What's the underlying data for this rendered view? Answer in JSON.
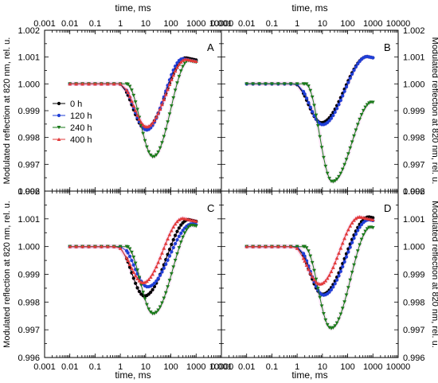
{
  "chart_data": {
    "type": "line",
    "layout": "2x2 panels sharing axes",
    "x_axis": {
      "label": "time, ms",
      "scale": "log",
      "range": [
        0.001,
        10000
      ],
      "tick_labels": [
        "0.001",
        "0.01",
        "0.1",
        "1",
        "10",
        "100",
        "1000",
        "10000"
      ]
    },
    "y_axis": {
      "label": "Modulated reflection at 820 nm, rel. u.",
      "range": [
        0.996,
        1.002
      ],
      "tick_labels": [
        "0.996",
        "0.997",
        "0.998",
        "0.999",
        "1.000",
        "1.001",
        "1.002"
      ]
    },
    "grid": false,
    "legend": {
      "placement": "panel A, left",
      "entries": [
        {
          "name": "0 h",
          "color": "#000000",
          "marker": "circle"
        },
        {
          "name": "120 h",
          "color": "#1f3fd6",
          "marker": "circle"
        },
        {
          "name": "240 h",
          "color": "#1a7a1a",
          "marker": "triangle-down"
        },
        {
          "name": "400 h",
          "color": "#e23a3a",
          "marker": "triangle-up"
        }
      ]
    },
    "panels": [
      {
        "letter": "A",
        "series": [
          {
            "name": "0 h",
            "min": 0.99832,
            "t_min": 10,
            "final": 1.00085,
            "t_peak": 400
          },
          {
            "name": "120 h",
            "min": 0.99828,
            "t_min": 11,
            "final": 1.00082,
            "t_peak": 300
          },
          {
            "name": "240 h",
            "min": 0.99728,
            "t_min": 20,
            "final": 1.00075,
            "t_peak": 500
          },
          {
            "name": "400 h",
            "min": 0.9984,
            "t_min": 11,
            "final": 1.0008,
            "t_peak": 400
          }
        ]
      },
      {
        "letter": "B",
        "series": [
          {
            "name": "0 h",
            "min": 0.99855,
            "t_min": 9,
            "final": 1.0009,
            "t_peak": 600
          },
          {
            "name": "120 h",
            "min": 0.99848,
            "t_min": 10,
            "final": 1.0009,
            "t_peak": 600
          },
          {
            "name": "240 h",
            "min": 0.99635,
            "t_min": 25,
            "final": 0.9992,
            "t_peak": 900
          }
        ]
      },
      {
        "letter": "C",
        "series": [
          {
            "name": "0 h",
            "min": 0.99822,
            "t_min": 9,
            "final": 1.00085,
            "t_peak": 500
          },
          {
            "name": "120 h",
            "min": 0.99855,
            "t_min": 12,
            "final": 1.0007,
            "t_peak": 700
          },
          {
            "name": "240 h",
            "min": 0.99758,
            "t_min": 20,
            "final": 1.00065,
            "t_peak": 700
          },
          {
            "name": "400 h",
            "min": 0.9987,
            "t_min": 8,
            "final": 1.0009,
            "t_peak": 300
          }
        ]
      },
      {
        "letter": "D",
        "series": [
          {
            "name": "0 h",
            "min": 0.99828,
            "t_min": 10,
            "final": 1.00095,
            "t_peak": 700
          },
          {
            "name": "120 h",
            "min": 0.99825,
            "t_min": 11,
            "final": 1.00085,
            "t_peak": 700
          },
          {
            "name": "240 h",
            "min": 0.99705,
            "t_min": 22,
            "final": 1.00058,
            "t_peak": 800
          },
          {
            "name": "400 h",
            "min": 0.99865,
            "t_min": 8,
            "final": 1.00095,
            "t_peak": 300
          }
        ]
      }
    ]
  }
}
